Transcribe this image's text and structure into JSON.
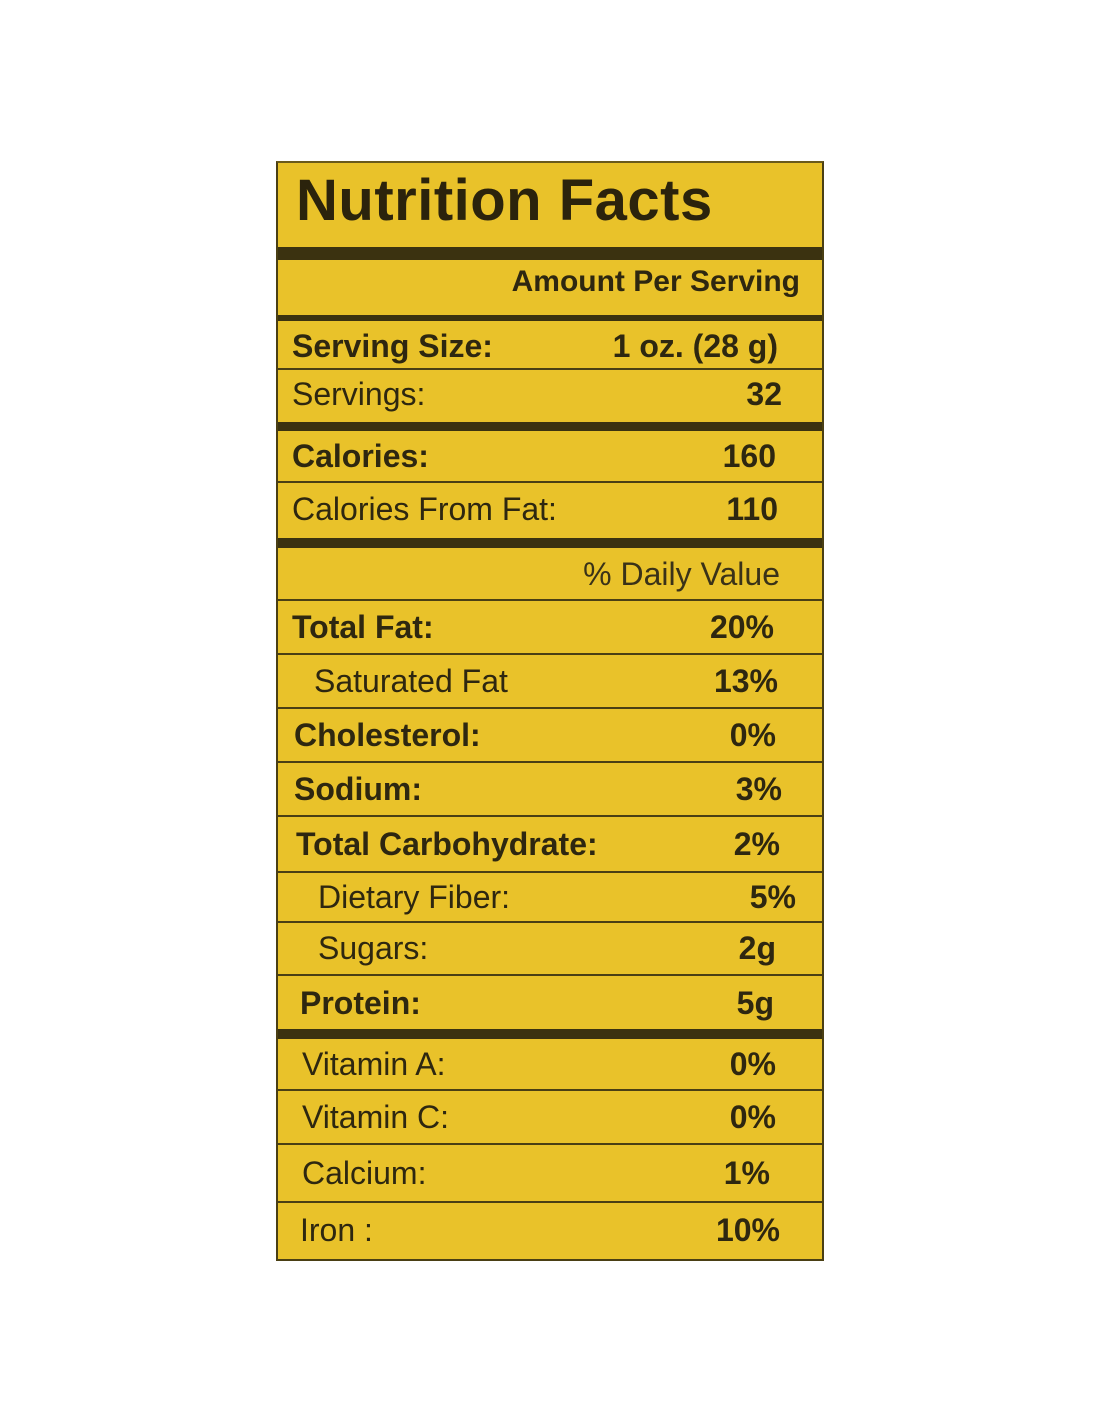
{
  "title": "Nutrition Facts",
  "amount_per_serving": "Amount Per Serving",
  "serving_size": {
    "label": "Serving Size:",
    "value": "1 oz. (28 g)"
  },
  "servings": {
    "label": "Servings:",
    "value": "32"
  },
  "calories": {
    "label": "Calories:",
    "value": "160"
  },
  "calories_from_fat": {
    "label": "Calories From Fat:",
    "value": "110"
  },
  "daily_value_header": "% Daily Value",
  "nutrients": [
    {
      "label": "Total Fat:",
      "value": "20%"
    },
    {
      "label": "Saturated Fat",
      "value": "13%"
    },
    {
      "label": "Cholesterol:",
      "value": "0%"
    },
    {
      "label": "Sodium:",
      "value": "3%"
    },
    {
      "label": "Total Carbohydrate:",
      "value": "2%"
    },
    {
      "label": "Dietary Fiber:",
      "value": "5%"
    },
    {
      "label": "Sugars:",
      "value": "2g"
    },
    {
      "label": "Protein:",
      "value": "5g"
    }
  ],
  "vitamins": [
    {
      "label": "Vitamin A:",
      "value": "0%"
    },
    {
      "label": "Vitamin C:",
      "value": "0%"
    },
    {
      "label": "Calcium:",
      "value": "1%"
    },
    {
      "label": "Iron :",
      "value": "10%"
    }
  ],
  "colors": {
    "label_background": "#e9c22a",
    "text": "#2e2710",
    "rules": "#3b3210"
  }
}
